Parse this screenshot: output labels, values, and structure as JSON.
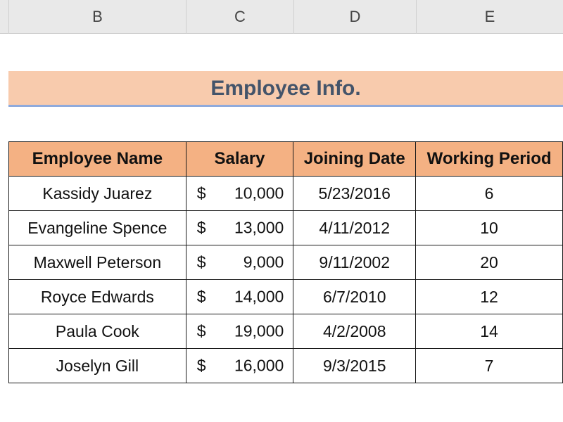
{
  "columns": [
    "B",
    "C",
    "D",
    "E"
  ],
  "title": "Employee Info.",
  "table": {
    "headers": [
      "Employee Name",
      "Salary",
      "Joining Date",
      "Working Period"
    ],
    "rows": [
      {
        "name": "Kassidy Juarez",
        "currency": "$",
        "salary": "10,000",
        "joining_date": "5/23/2016",
        "working_period": "6"
      },
      {
        "name": "Evangeline Spence",
        "currency": "$",
        "salary": "13,000",
        "joining_date": "4/11/2012",
        "working_period": "10"
      },
      {
        "name": "Maxwell Peterson",
        "currency": "$",
        "salary": "9,000",
        "joining_date": "9/11/2002",
        "working_period": "20"
      },
      {
        "name": "Royce Edwards",
        "currency": "$",
        "salary": "14,000",
        "joining_date": "6/7/2010",
        "working_period": "12"
      },
      {
        "name": "Paula Cook",
        "currency": "$",
        "salary": "19,000",
        "joining_date": "4/2/2008",
        "working_period": "14"
      },
      {
        "name": "Joselyn Gill",
        "currency": "$",
        "salary": "16,000",
        "joining_date": "9/3/2015",
        "working_period": "7"
      }
    ]
  },
  "colors": {
    "header_bg": "#f4b183",
    "title_bg": "#f8cbad",
    "title_text": "#44546a",
    "title_underline": "#8faadc"
  }
}
